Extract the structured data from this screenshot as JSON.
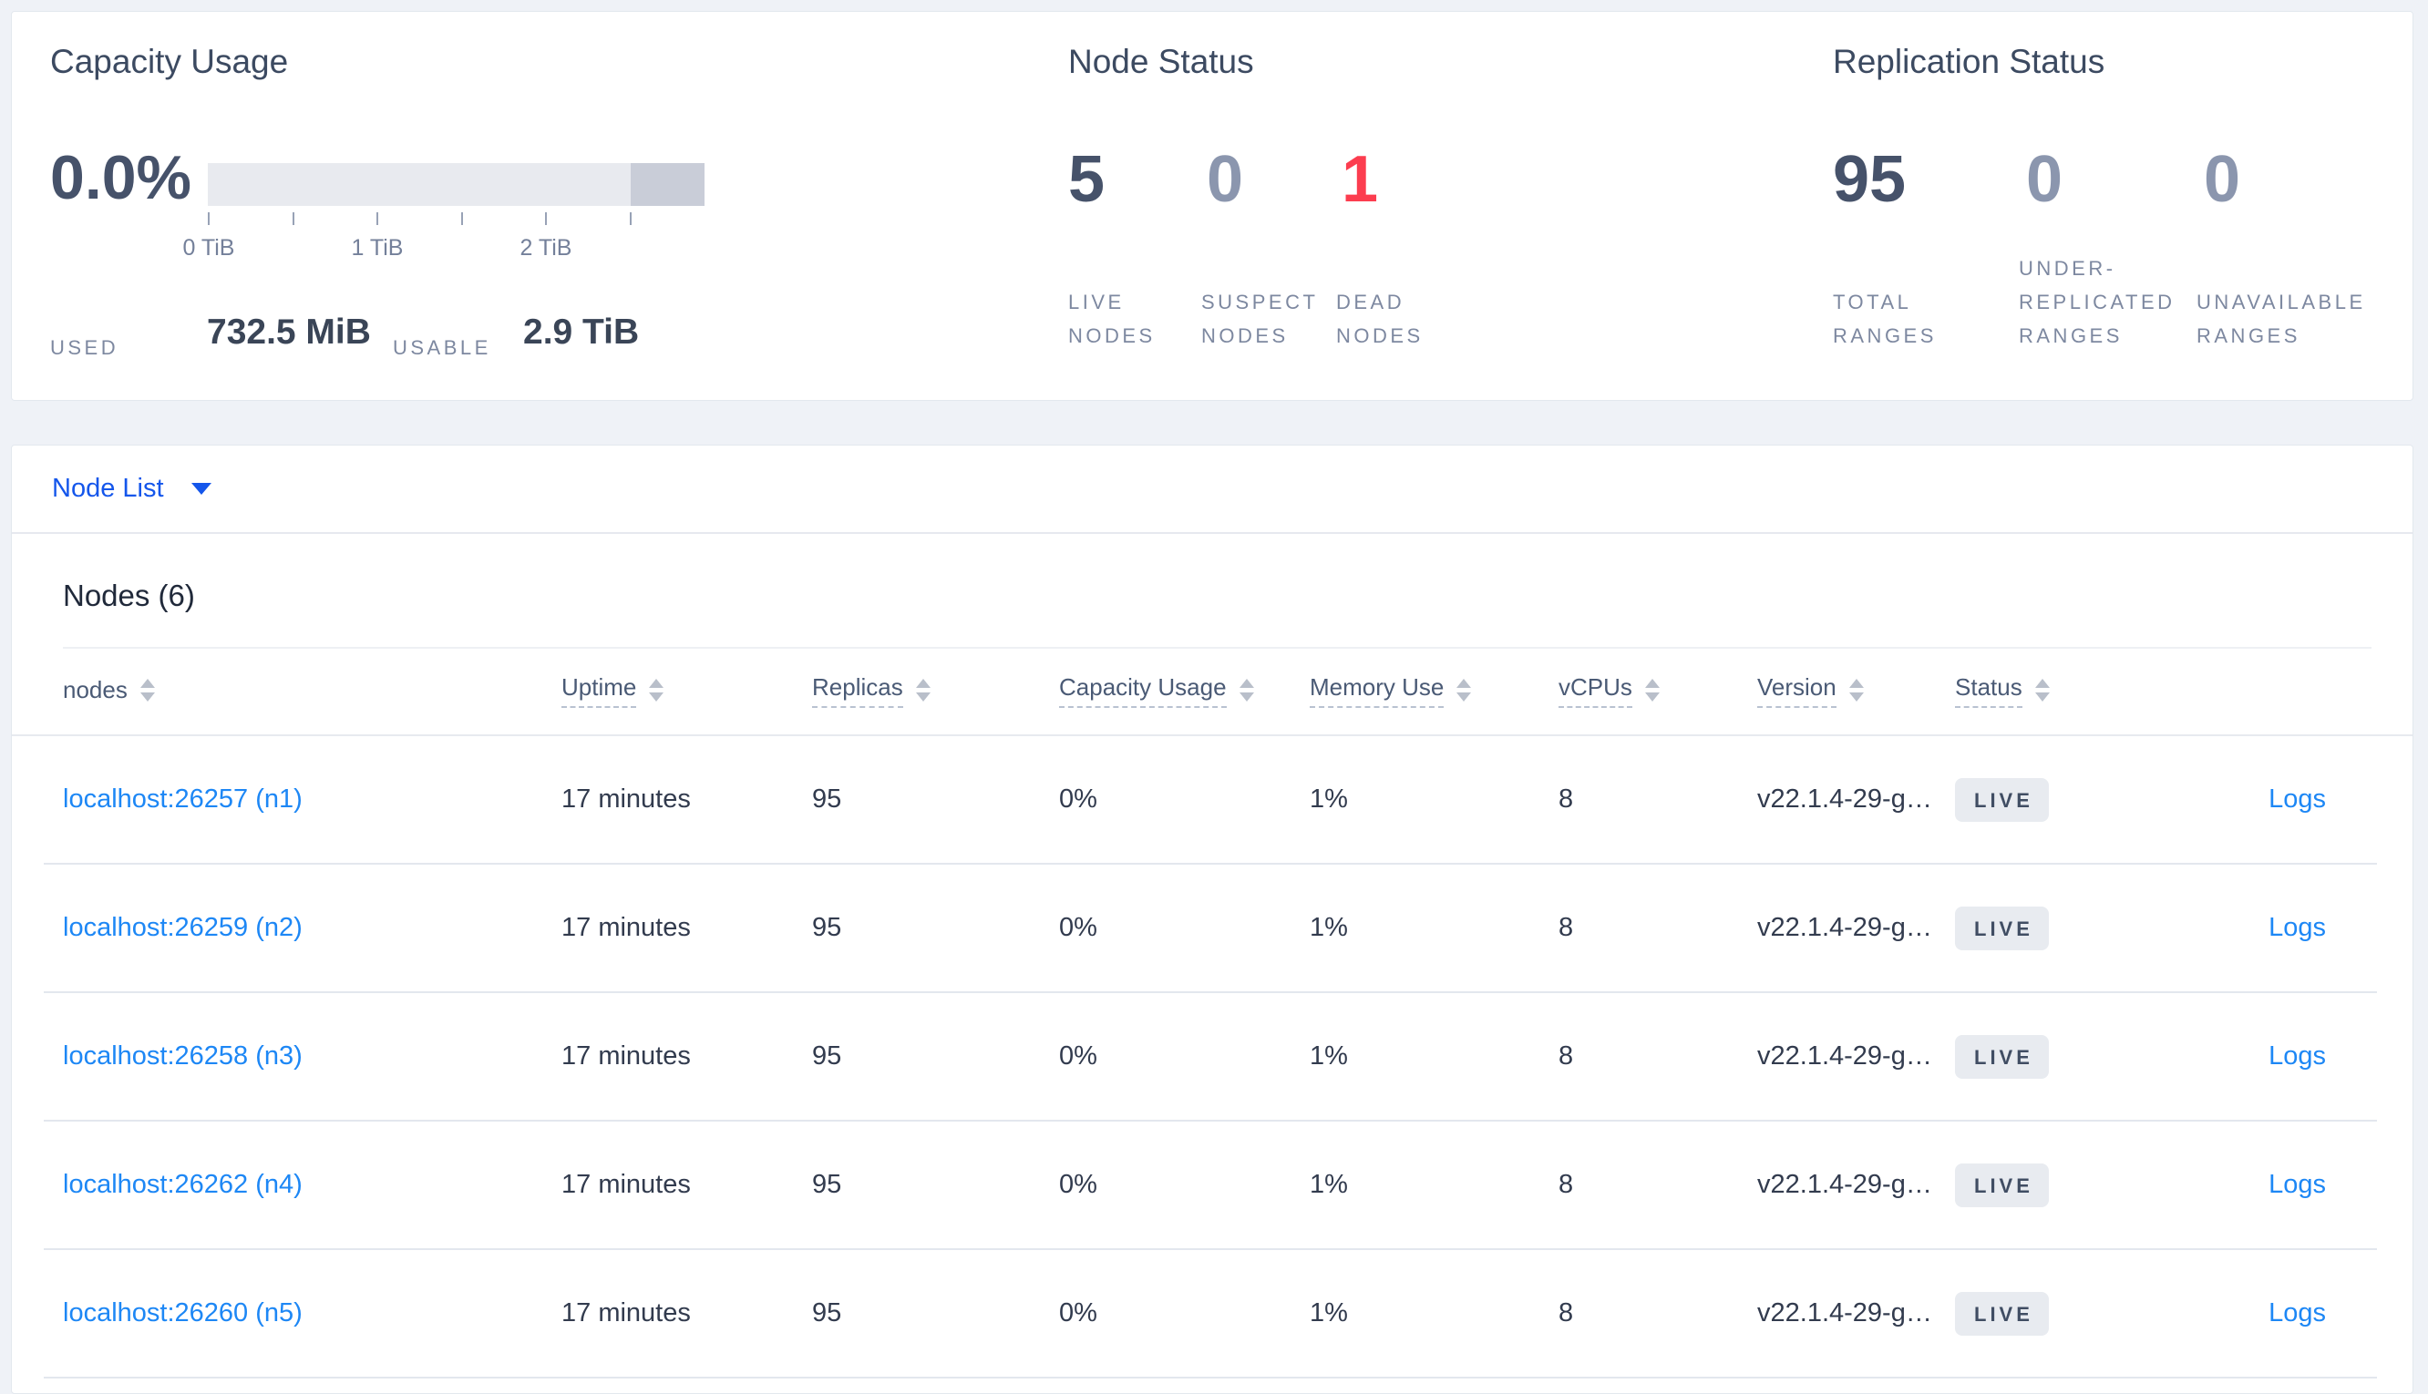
{
  "colors": {
    "page_background": "#eff2f7",
    "card_background": "#ffffff",
    "accent_blue": "#1456eb",
    "link_blue": "#1d87f5",
    "danger_red": "#fc3d4f",
    "dark_slate": "#46526a",
    "muted_slate": "#8b96ae",
    "label_gray": "#7d88a0",
    "badge_background": "#e8ebf0"
  },
  "summary": {
    "capacity": {
      "title": "Capacity Usage",
      "percent_used": "0.0%",
      "axis_ticks": [
        "0 TiB",
        "1 TiB",
        "2 TiB"
      ],
      "used_label": "USED",
      "used_value": "732.5 MiB",
      "usable_label": "USABLE",
      "usable_value": "2.9 TiB"
    },
    "node_status": {
      "title": "Node Status",
      "metrics": [
        {
          "value": "5",
          "label": "LIVE NODES",
          "tone": "dark"
        },
        {
          "value": "0",
          "label": "SUSPECT NODES",
          "tone": "muted"
        },
        {
          "value": "1",
          "label": "DEAD NODES",
          "tone": "danger"
        }
      ]
    },
    "replication_status": {
      "title": "Replication Status",
      "metrics": [
        {
          "value": "95",
          "label": "TOTAL RANGES",
          "tone": "dark"
        },
        {
          "value": "0",
          "label": "UNDER-REPLICATED RANGES",
          "tone": "muted"
        },
        {
          "value": "0",
          "label": "UNAVAILABLE RANGES",
          "tone": "muted"
        }
      ]
    }
  },
  "node_list": {
    "dropdown_label": "Node List",
    "section_title": "Nodes (6)",
    "columns": [
      {
        "key": "node",
        "label": "nodes",
        "sortable": true,
        "tooltip": false
      },
      {
        "key": "uptime",
        "label": "Uptime",
        "sortable": true,
        "tooltip": true
      },
      {
        "key": "replicas",
        "label": "Replicas",
        "sortable": true,
        "tooltip": true
      },
      {
        "key": "capacity_usage",
        "label": "Capacity Usage",
        "sortable": true,
        "tooltip": true
      },
      {
        "key": "memory_use",
        "label": "Memory Use",
        "sortable": true,
        "tooltip": true
      },
      {
        "key": "vcpus",
        "label": "vCPUs",
        "sortable": true,
        "tooltip": true
      },
      {
        "key": "version",
        "label": "Version",
        "sortable": true,
        "tooltip": true
      },
      {
        "key": "status",
        "label": "Status",
        "sortable": true,
        "tooltip": true
      },
      {
        "key": "logs",
        "label": "",
        "sortable": false,
        "tooltip": false
      }
    ],
    "rows": [
      {
        "node": "localhost:26257 (n1)",
        "uptime": "17 minutes",
        "replicas": "95",
        "capacity_usage": "0%",
        "memory_use": "1%",
        "vcpus": "8",
        "version": "v22.1.4-29-g…",
        "status": "LIVE",
        "logs": "Logs"
      },
      {
        "node": "localhost:26259 (n2)",
        "uptime": "17 minutes",
        "replicas": "95",
        "capacity_usage": "0%",
        "memory_use": "1%",
        "vcpus": "8",
        "version": "v22.1.4-29-g…",
        "status": "LIVE",
        "logs": "Logs"
      },
      {
        "node": "localhost:26258 (n3)",
        "uptime": "17 minutes",
        "replicas": "95",
        "capacity_usage": "0%",
        "memory_use": "1%",
        "vcpus": "8",
        "version": "v22.1.4-29-g…",
        "status": "LIVE",
        "logs": "Logs"
      },
      {
        "node": "localhost:26262 (n4)",
        "uptime": "17 minutes",
        "replicas": "95",
        "capacity_usage": "0%",
        "memory_use": "1%",
        "vcpus": "8",
        "version": "v22.1.4-29-g…",
        "status": "LIVE",
        "logs": "Logs"
      },
      {
        "node": "localhost:26260 (n5)",
        "uptime": "17 minutes",
        "replicas": "95",
        "capacity_usage": "0%",
        "memory_use": "1%",
        "vcpus": "8",
        "version": "v22.1.4-29-g…",
        "status": "LIVE",
        "logs": "Logs"
      }
    ]
  }
}
